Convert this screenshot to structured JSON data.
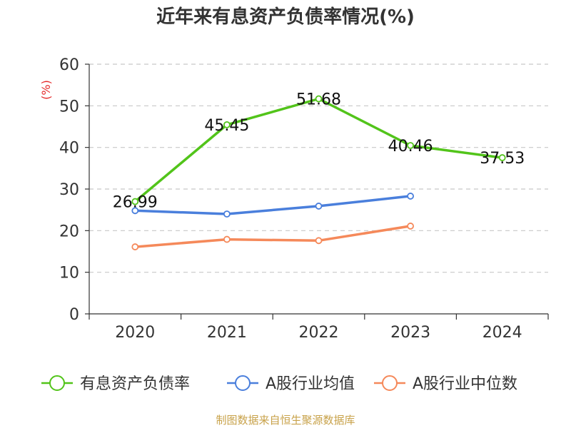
{
  "chart_data": {
    "type": "line",
    "title": "近年来有息资产负债率情况(%)",
    "ylabel": "(%)",
    "xlabel": "",
    "categories": [
      "2020",
      "2021",
      "2022",
      "2023",
      "2024"
    ],
    "ylim": [
      0,
      60
    ],
    "yticks": [
      0,
      10,
      20,
      30,
      40,
      50,
      60
    ],
    "grid": true,
    "legend_position": "bottom",
    "series": [
      {
        "name": "有息资产负债率",
        "color": "#52c41a",
        "values": [
          26.99,
          45.45,
          51.68,
          40.46,
          37.53
        ],
        "labels": [
          "26.99",
          "45.45",
          "51.68",
          "40.46",
          "37.53"
        ]
      },
      {
        "name": "A股行业均值",
        "color": "#4a7fdc",
        "values": [
          24.8,
          24.0,
          25.9,
          28.3,
          null
        ]
      },
      {
        "name": "A股行业中位数",
        "color": "#f5895a",
        "values": [
          16.1,
          17.9,
          17.6,
          21.1,
          null
        ]
      }
    ]
  },
  "footer": {
    "source": "制图数据来自恒生聚源数据库"
  }
}
